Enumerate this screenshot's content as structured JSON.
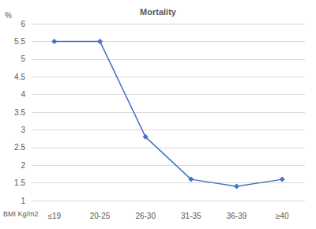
{
  "chart_data": {
    "type": "line",
    "title": "Mortality",
    "x_label": "BMI Kg/m2",
    "y_label": "%",
    "categories": [
      "≤19",
      "20-25",
      "26-30",
      "31-35",
      "36-39",
      "≥40"
    ],
    "values": [
      5.5,
      5.5,
      2.8,
      1.6,
      1.4,
      1.6
    ],
    "color": "#4472c4",
    "marker": "diamond",
    "ylim": [
      1,
      6
    ],
    "yticks": [
      1,
      1.5,
      2,
      2.5,
      3,
      3.5,
      4,
      4.5,
      5,
      5.5,
      6
    ],
    "grid": true
  }
}
